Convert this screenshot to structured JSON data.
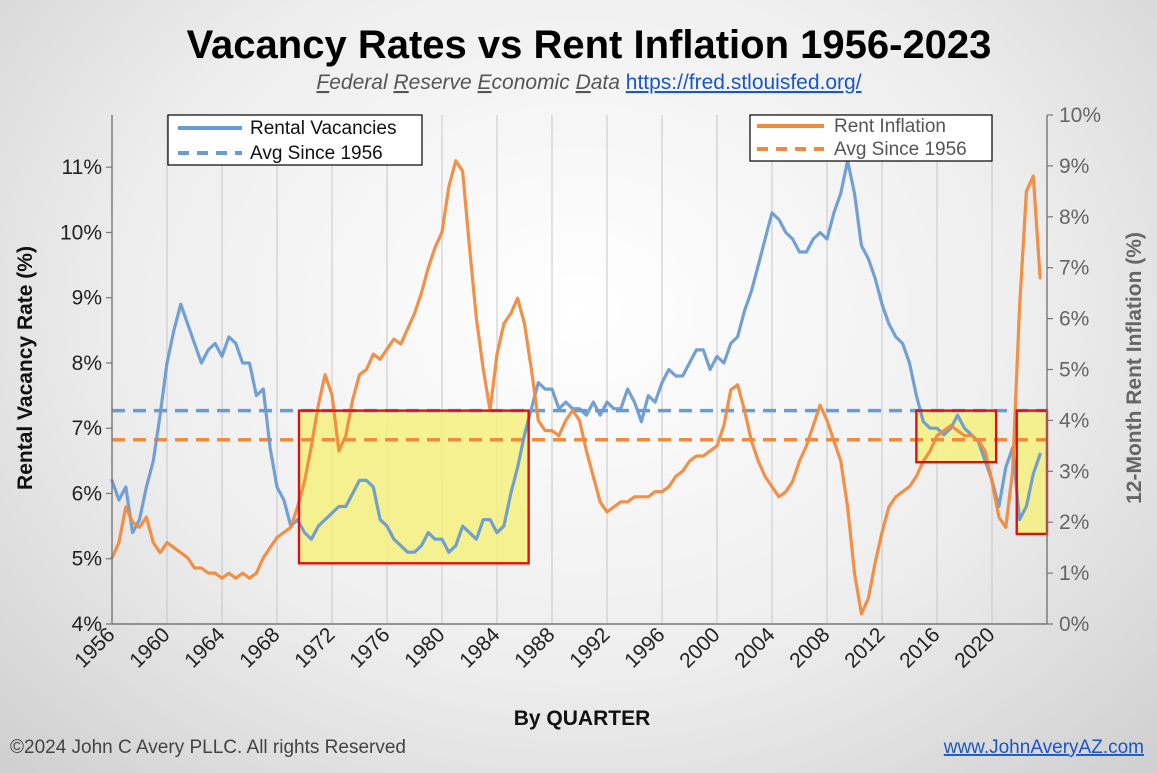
{
  "chart_data": {
    "type": "line",
    "title": "Vacancy Rates vs Rent Inflation 1956-2023",
    "subtitle_parts": [
      "F",
      "ederal ",
      "R",
      "eserve ",
      "E",
      "conomic ",
      "D",
      "ata "
    ],
    "subtitle_link": "https://fred.stlouisfed.org/",
    "xlabel": "By QUARTER",
    "ylabel_left": "Rental Vacancy Rate (%)",
    "ylabel_right": "12-Month Rent Inflation (%)",
    "xlim": [
      1956,
      2024
    ],
    "ylim_left": [
      4,
      11.8
    ],
    "ylim_right": [
      0,
      10
    ],
    "x_ticks": [
      "1956",
      "1960",
      "1964",
      "1968",
      "1972",
      "1976",
      "1980",
      "1984",
      "1988",
      "1992",
      "1996",
      "2000",
      "2004",
      "2008",
      "2012",
      "2016",
      "2020"
    ],
    "y_ticks_left": [
      "4%",
      "5%",
      "6%",
      "7%",
      "8%",
      "9%",
      "10%",
      "11%"
    ],
    "y_ticks_right": [
      "0%",
      "1%",
      "2%",
      "3%",
      "4%",
      "5%",
      "6%",
      "7%",
      "8%",
      "9%",
      "10%"
    ],
    "grid": "vertical",
    "colors": {
      "vacancy": "#6a9bd1",
      "inflation": "#f08a3c",
      "box_fill": "#f7f07a",
      "box_stroke": "#e01010"
    },
    "legend_left": {
      "placement": "top-left",
      "series": "Rental Vacancies",
      "avg": "Avg Since 1956"
    },
    "legend_right": {
      "placement": "top-right",
      "series": "Rent Inflation",
      "avg": "Avg Since 1956"
    },
    "series": [
      {
        "name": "Rental Vacancies",
        "axis": "left",
        "x": [
          1956,
          1956.5,
          1957,
          1957.5,
          1958,
          1958.5,
          1959,
          1959.5,
          1960,
          1960.5,
          1961,
          1961.5,
          1962,
          1962.5,
          1963,
          1963.5,
          1964,
          1964.5,
          1965,
          1965.5,
          1966,
          1966.5,
          1967,
          1967.5,
          1968,
          1968.5,
          1969,
          1969.5,
          1970,
          1970.5,
          1971,
          1971.5,
          1972,
          1972.5,
          1973,
          1973.5,
          1974,
          1974.5,
          1975,
          1975.5,
          1976,
          1976.5,
          1977,
          1977.5,
          1978,
          1978.5,
          1979,
          1979.5,
          1980,
          1980.5,
          1981,
          1981.5,
          1982,
          1982.5,
          1983,
          1983.5,
          1984,
          1984.5,
          1985,
          1985.5,
          1986,
          1986.5,
          1987,
          1987.5,
          1988,
          1988.5,
          1989,
          1989.5,
          1990,
          1990.5,
          1991,
          1991.5,
          1992,
          1992.5,
          1993,
          1993.5,
          1994,
          1994.5,
          1995,
          1995.5,
          1996,
          1996.5,
          1997,
          1997.5,
          1998,
          1998.5,
          1999,
          1999.5,
          2000,
          2000.5,
          2001,
          2001.5,
          2002,
          2002.5,
          2003,
          2003.5,
          2004,
          2004.5,
          2005,
          2005.5,
          2006,
          2006.5,
          2007,
          2007.5,
          2008,
          2008.5,
          2009,
          2009.5,
          2010,
          2010.5,
          2011,
          2011.5,
          2012,
          2012.5,
          2013,
          2013.5,
          2014,
          2014.5,
          2015,
          2015.5,
          2016,
          2016.5,
          2017,
          2017.5,
          2018,
          2018.5,
          2019,
          2019.5,
          2020,
          2020.5,
          2021,
          2021.5,
          2022,
          2022.5,
          2023,
          2023.5
        ],
        "values": [
          6.2,
          5.9,
          6.1,
          5.4,
          5.6,
          6.1,
          6.5,
          7.2,
          8.0,
          8.5,
          8.9,
          8.6,
          8.3,
          8.0,
          8.2,
          8.3,
          8.1,
          8.4,
          8.3,
          8.0,
          8.0,
          7.5,
          7.6,
          6.7,
          6.1,
          5.9,
          5.5,
          5.6,
          5.4,
          5.3,
          5.5,
          5.6,
          5.7,
          5.8,
          5.8,
          6.0,
          6.2,
          6.2,
          6.1,
          5.6,
          5.5,
          5.3,
          5.2,
          5.1,
          5.1,
          5.2,
          5.4,
          5.3,
          5.3,
          5.1,
          5.2,
          5.5,
          5.4,
          5.3,
          5.6,
          5.6,
          5.4,
          5.5,
          6.0,
          6.4,
          6.9,
          7.3,
          7.7,
          7.6,
          7.6,
          7.3,
          7.4,
          7.3,
          7.3,
          7.2,
          7.4,
          7.2,
          7.4,
          7.3,
          7.3,
          7.6,
          7.4,
          7.1,
          7.5,
          7.4,
          7.7,
          7.9,
          7.8,
          7.8,
          8.0,
          8.2,
          8.2,
          7.9,
          8.1,
          8.0,
          8.3,
          8.4,
          8.8,
          9.1,
          9.5,
          9.9,
          10.3,
          10.2,
          10.0,
          9.9,
          9.7,
          9.7,
          9.9,
          10.0,
          9.9,
          10.3,
          10.6,
          11.1,
          10.6,
          9.8,
          9.6,
          9.3,
          8.9,
          8.6,
          8.4,
          8.3,
          8.0,
          7.5,
          7.1,
          7.0,
          7.0,
          6.9,
          7.0,
          7.2,
          7.0,
          6.9,
          6.8,
          6.5,
          6.2,
          5.8,
          6.4,
          6.7,
          5.6,
          5.8,
          6.3,
          6.6
        ]
      },
      {
        "name": "Rent Inflation",
        "axis": "right",
        "x": [
          1956,
          1956.5,
          1957,
          1957.5,
          1958,
          1958.5,
          1959,
          1959.5,
          1960,
          1960.5,
          1961,
          1961.5,
          1962,
          1962.5,
          1963,
          1963.5,
          1964,
          1964.5,
          1965,
          1965.5,
          1966,
          1966.5,
          1967,
          1967.5,
          1968,
          1968.5,
          1969,
          1969.5,
          1970,
          1970.5,
          1971,
          1971.5,
          1972,
          1972.5,
          1973,
          1973.5,
          1974,
          1974.5,
          1975,
          1975.5,
          1976,
          1976.5,
          1977,
          1977.5,
          1978,
          1978.5,
          1979,
          1979.5,
          1980,
          1980.5,
          1981,
          1981.5,
          1982,
          1982.5,
          1983,
          1983.5,
          1984,
          1984.5,
          1985,
          1985.5,
          1986,
          1986.5,
          1987,
          1987.5,
          1988,
          1988.5,
          1989,
          1989.5,
          1990,
          1990.5,
          1991,
          1991.5,
          1992,
          1992.5,
          1993,
          1993.5,
          1994,
          1994.5,
          1995,
          1995.5,
          1996,
          1996.5,
          1997,
          1997.5,
          1998,
          1998.5,
          1999,
          1999.5,
          2000,
          2000.5,
          2001,
          2001.5,
          2002,
          2002.5,
          2003,
          2003.5,
          2004,
          2004.5,
          2005,
          2005.5,
          2006,
          2006.5,
          2007,
          2007.5,
          2008,
          2008.5,
          2009,
          2009.5,
          2010,
          2010.5,
          2011,
          2011.5,
          2012,
          2012.5,
          2013,
          2013.5,
          2014,
          2014.5,
          2015,
          2015.5,
          2016,
          2016.5,
          2017,
          2017.5,
          2018,
          2018.5,
          2019,
          2019.5,
          2020,
          2020.5,
          2021,
          2021.5,
          2022,
          2022.5,
          2023,
          2023.5
        ],
        "values": [
          1.3,
          1.6,
          2.3,
          2.0,
          1.9,
          2.1,
          1.6,
          1.4,
          1.6,
          1.5,
          1.4,
          1.3,
          1.1,
          1.1,
          1.0,
          1.0,
          0.9,
          1.0,
          0.9,
          1.0,
          0.9,
          1.0,
          1.3,
          1.5,
          1.7,
          1.8,
          1.9,
          2.3,
          2.8,
          3.5,
          4.3,
          4.9,
          4.5,
          3.4,
          3.7,
          4.4,
          4.9,
          5.0,
          5.3,
          5.2,
          5.4,
          5.6,
          5.5,
          5.8,
          6.1,
          6.5,
          7.0,
          7.4,
          7.7,
          8.6,
          9.1,
          8.9,
          7.4,
          6.0,
          5.0,
          4.2,
          5.3,
          5.9,
          6.1,
          6.4,
          5.9,
          5.0,
          4.0,
          3.8,
          3.8,
          3.7,
          4.0,
          4.2,
          4.0,
          3.4,
          2.9,
          2.4,
          2.2,
          2.3,
          2.4,
          2.4,
          2.5,
          2.5,
          2.5,
          2.6,
          2.6,
          2.7,
          2.9,
          3.0,
          3.2,
          3.3,
          3.3,
          3.4,
          3.5,
          3.9,
          4.6,
          4.7,
          4.2,
          3.6,
          3.2,
          2.9,
          2.7,
          2.5,
          2.6,
          2.8,
          3.2,
          3.5,
          3.9,
          4.3,
          4.0,
          3.6,
          3.2,
          2.3,
          1.0,
          0.2,
          0.5,
          1.2,
          1.8,
          2.3,
          2.5,
          2.6,
          2.7,
          2.9,
          3.2,
          3.4,
          3.7,
          3.8,
          3.9,
          3.8,
          3.7,
          3.7,
          3.6,
          3.4,
          2.8,
          2.1,
          1.9,
          3.0,
          6.2,
          8.5,
          8.8,
          6.8
        ]
      }
    ],
    "averages": {
      "vacancy_avg": 7.27,
      "inflation_avg": 3.62
    },
    "highlight_boxes": [
      {
        "x_start": 1969.6,
        "x_end": 1986.3,
        "y_low": 4.93,
        "y_high": 7.27
      },
      {
        "x_start": 2014.5,
        "x_end": 2020.3,
        "y_low": 6.48,
        "y_high": 7.27
      },
      {
        "x_start": 2021.8,
        "x_end": 2024.0,
        "y_low": 5.38,
        "y_high": 7.27
      }
    ]
  },
  "footer": {
    "copyright": "©2024 John C Avery PLLC. All rights Reserved",
    "website": "www.JohnAveryAZ.com"
  }
}
